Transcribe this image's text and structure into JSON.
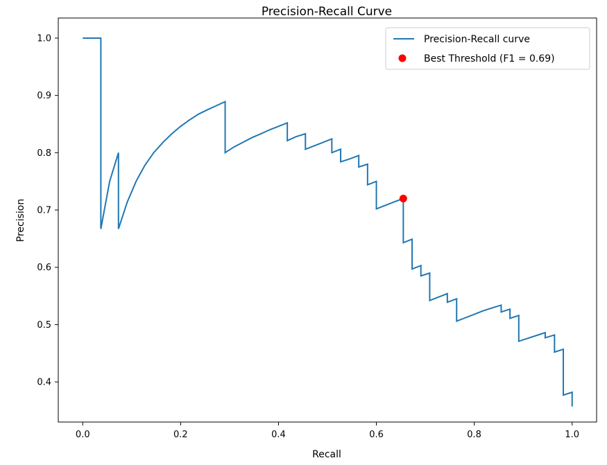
{
  "chart_data": {
    "type": "line",
    "title": "Precision-Recall Curve",
    "xlabel": "Recall",
    "ylabel": "Precision",
    "xlim": [
      -0.05,
      1.05
    ],
    "ylim": [
      0.33,
      1.035
    ],
    "xticks": [
      0.0,
      0.2,
      0.4,
      0.6,
      0.8,
      1.0
    ],
    "xtick_labels": [
      "0.0",
      "0.2",
      "0.4",
      "0.6",
      "0.8",
      "1.0"
    ],
    "yticks": [
      0.4,
      0.5,
      0.6,
      0.7,
      0.8,
      0.9,
      1.0
    ],
    "ytick_labels": [
      "0.4",
      "0.5",
      "0.6",
      "0.7",
      "0.8",
      "0.9",
      "1.0"
    ],
    "grid": false,
    "legend_position": "top-right",
    "series": [
      {
        "name": "Precision-Recall curve",
        "kind": "line",
        "color": "#1f77b4",
        "x": [
          0.0,
          0.037,
          0.037,
          0.055,
          0.073,
          0.073,
          0.091,
          0.109,
          0.127,
          0.145,
          0.164,
          0.182,
          0.2,
          0.218,
          0.236,
          0.255,
          0.273,
          0.291,
          0.291,
          0.309,
          0.327,
          0.345,
          0.364,
          0.382,
          0.4,
          0.418,
          0.418,
          0.436,
          0.455,
          0.455,
          0.473,
          0.491,
          0.509,
          0.509,
          0.527,
          0.527,
          0.545,
          0.564,
          0.564,
          0.582,
          0.582,
          0.6,
          0.6,
          0.618,
          0.636,
          0.655,
          0.655,
          0.673,
          0.673,
          0.691,
          0.691,
          0.709,
          0.709,
          0.727,
          0.745,
          0.745,
          0.764,
          0.764,
          0.782,
          0.8,
          0.818,
          0.836,
          0.855,
          0.855,
          0.873,
          0.873,
          0.891,
          0.891,
          0.909,
          0.927,
          0.945,
          0.945,
          0.964,
          0.964,
          0.982,
          0.982,
          1.0,
          1.0
        ],
        "y": [
          1.0,
          1.0,
          0.667,
          0.75,
          0.8,
          0.667,
          0.714,
          0.75,
          0.778,
          0.8,
          0.818,
          0.833,
          0.846,
          0.857,
          0.867,
          0.875,
          0.882,
          0.889,
          0.8,
          0.81,
          0.818,
          0.826,
          0.833,
          0.84,
          0.846,
          0.852,
          0.821,
          0.828,
          0.833,
          0.806,
          0.812,
          0.818,
          0.824,
          0.8,
          0.806,
          0.784,
          0.789,
          0.795,
          0.775,
          0.78,
          0.744,
          0.75,
          0.702,
          0.708,
          0.714,
          0.72,
          0.643,
          0.649,
          0.597,
          0.603,
          0.585,
          0.59,
          0.542,
          0.548,
          0.554,
          0.539,
          0.545,
          0.506,
          0.512,
          0.518,
          0.524,
          0.529,
          0.534,
          0.522,
          0.527,
          0.511,
          0.516,
          0.471,
          0.476,
          0.481,
          0.486,
          0.477,
          0.482,
          0.452,
          0.457,
          0.377,
          0.382,
          0.357
        ]
      },
      {
        "name": "Best Threshold (F1 = 0.69)",
        "kind": "scatter",
        "color": "#ff0000",
        "x": [
          0.655
        ],
        "y": [
          0.72
        ]
      }
    ]
  }
}
